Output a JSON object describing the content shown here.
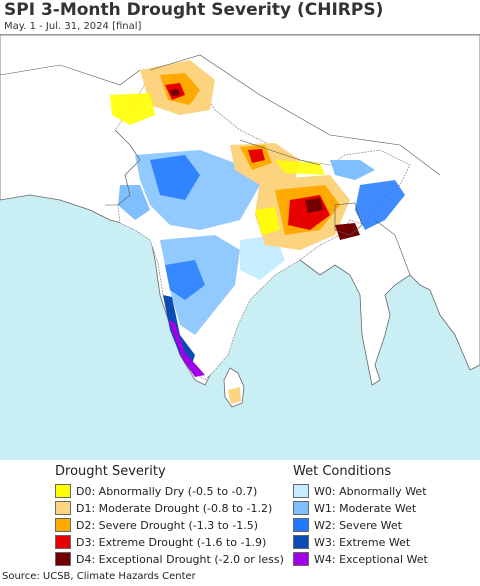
{
  "header": {
    "title": "SPI 3-Month Drought Severity (CHIRPS)",
    "subtitle": "May. 1 - Jul. 31, 2024 [final]"
  },
  "legend": {
    "drought": {
      "heading": "Drought Severity",
      "items": [
        {
          "label": "D0: Abnormally Dry (-0.5 to -0.7)",
          "color": "#ffff00"
        },
        {
          "label": "D1: Moderate Drought (-0.8 to -1.2)",
          "color": "#fcd37f"
        },
        {
          "label": "D2: Severe Drought (-1.3 to -1.5)",
          "color": "#ffaa00"
        },
        {
          "label": "D3: Extreme Drought (-1.6 to -1.9)",
          "color": "#e60000"
        },
        {
          "label": "D4: Exceptional Drought (-2.0 or less)",
          "color": "#730000"
        }
      ]
    },
    "wet": {
      "heading": "Wet Conditions",
      "items": [
        {
          "label": "W0: Abnormally Wet",
          "color": "#c6ecff"
        },
        {
          "label": "W1: Moderate Wet",
          "color": "#7fbfff"
        },
        {
          "label": "W2: Severe Wet",
          "color": "#1f78ff"
        },
        {
          "label": "W3: Extreme Wet",
          "color": "#0a4bb4"
        },
        {
          "label": "W4: Exceptional Wet",
          "color": "#a000e6"
        }
      ]
    }
  },
  "map": {
    "ocean_color": "#c9eef3",
    "land_color": "#ffffff",
    "outside_land_color": "#ffffff"
  },
  "footer": {
    "source": "Source: UCSB, Climate Hazards Center"
  }
}
